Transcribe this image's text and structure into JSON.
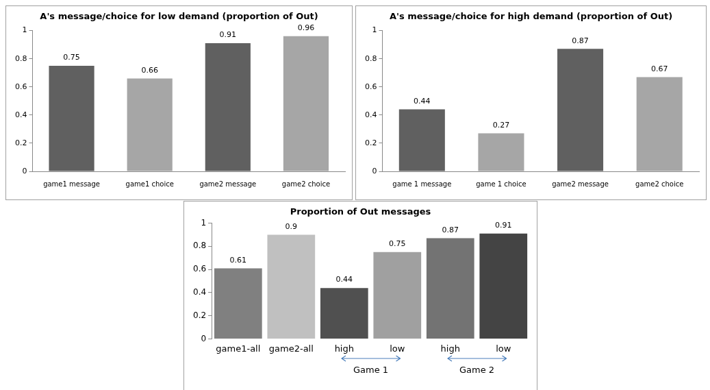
{
  "chart_data": [
    {
      "type": "bar",
      "title": "A's message/choice for low demand (proportion of Out)",
      "categories": [
        "game1 message",
        "game1 choice",
        "game2 message",
        "game2 choice"
      ],
      "values": [
        0.75,
        0.66,
        0.91,
        0.96
      ],
      "colors": [
        "#606060",
        "#a6a6a6",
        "#606060",
        "#a6a6a6"
      ],
      "ylim": [
        0,
        1
      ],
      "yticks": [
        0,
        0.2,
        0.4,
        0.6,
        0.8,
        1
      ],
      "data_labels": true,
      "grid": false,
      "legend": false
    },
    {
      "type": "bar",
      "title": "A's message/choice for high demand (proportion of Out)",
      "categories": [
        "game 1 message",
        "game 1 choice",
        "game2 message",
        "game2 choice"
      ],
      "values": [
        0.44,
        0.27,
        0.87,
        0.67
      ],
      "colors": [
        "#606060",
        "#a6a6a6",
        "#606060",
        "#a6a6a6"
      ],
      "ylim": [
        0,
        1
      ],
      "yticks": [
        0,
        0.2,
        0.4,
        0.6,
        0.8,
        1
      ],
      "data_labels": true,
      "grid": false,
      "legend": false
    },
    {
      "type": "bar",
      "title": "Proportion of Out messages",
      "categories": [
        "game1-all",
        "game2-all",
        "high",
        "low",
        "high",
        "low"
      ],
      "values": [
        0.61,
        0.9,
        0.44,
        0.75,
        0.87,
        0.91
      ],
      "colors": [
        "#808080",
        "#c0c0c0",
        "#505050",
        "#a0a0a0",
        "#737373",
        "#444444"
      ],
      "ylim": [
        0,
        1
      ],
      "yticks": [
        0,
        0.2,
        0.4,
        0.6,
        0.8,
        1
      ],
      "data_labels": true,
      "grid": false,
      "legend": false,
      "annotations": [
        "Game 1",
        "Game 2"
      ]
    }
  ]
}
